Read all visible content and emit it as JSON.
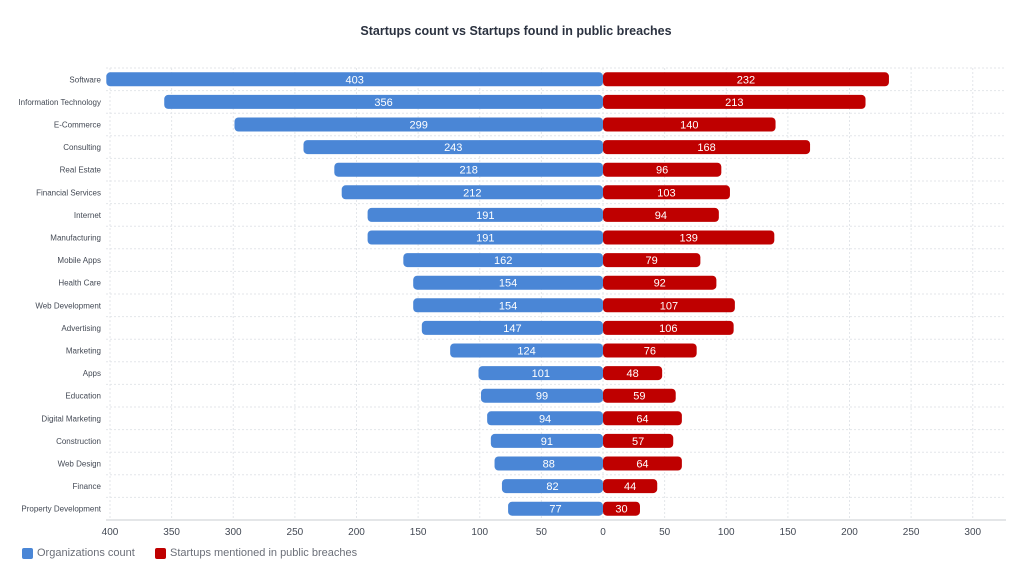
{
  "chart_data": {
    "type": "bar",
    "orientation": "horizontal-diverging",
    "title": "Startups count vs Startups found in public breaches",
    "categories": [
      "Software",
      "Information Technology",
      "E-Commerce",
      "Consulting",
      "Real Estate",
      "Financial Services",
      "Internet",
      "Manufacturing",
      "Mobile Apps",
      "Health Care",
      "Web Development",
      "Advertising",
      "Marketing",
      "Apps",
      "Education",
      "Digital Marketing",
      "Construction",
      "Web Design",
      "Finance",
      "Property Development"
    ],
    "series": [
      {
        "name": "Organizations count",
        "color": "#4a86d6",
        "side": "left",
        "values": [
          403,
          356,
          299,
          243,
          218,
          212,
          191,
          191,
          162,
          154,
          154,
          147,
          124,
          101,
          99,
          94,
          91,
          88,
          82,
          77
        ]
      },
      {
        "name": "Startups mentioned in public breaches",
        "color": "#bf0000",
        "side": "right",
        "values": [
          232,
          213,
          140,
          168,
          96,
          103,
          94,
          139,
          79,
          92,
          107,
          106,
          76,
          48,
          59,
          64,
          57,
          64,
          44,
          30
        ]
      }
    ],
    "x_ticks": [
      "400",
      "350",
      "300",
      "250",
      "200",
      "150",
      "100",
      "50",
      "0",
      "50",
      "100",
      "150",
      "200",
      "250",
      "300"
    ],
    "xlim": [
      -400,
      300
    ],
    "grid": true,
    "legend_position": "bottom-left"
  }
}
